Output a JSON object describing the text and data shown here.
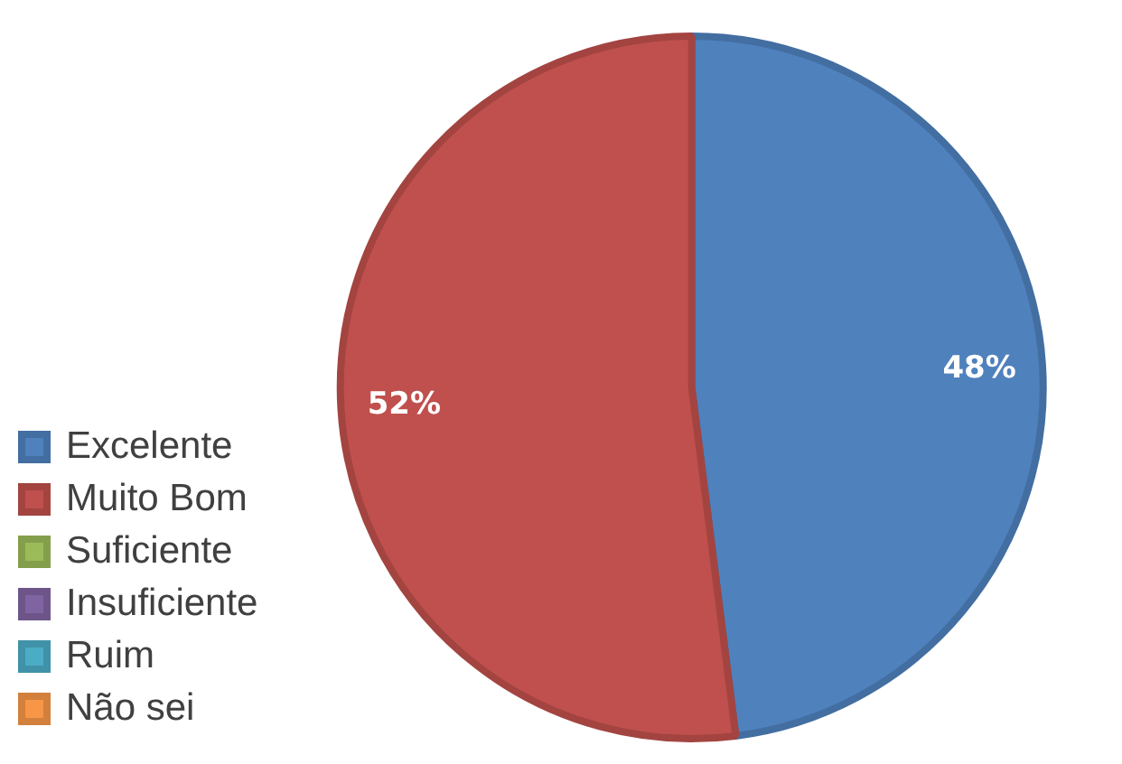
{
  "chart_data": {
    "type": "pie",
    "categories": [
      "Excelente",
      "Muito Bom",
      "Suficiente",
      "Insuficiente",
      "Ruim",
      "Não sei"
    ],
    "values": [
      48,
      52,
      0,
      0,
      0,
      0
    ],
    "colors": [
      "#4f81bd",
      "#c0504d",
      "#9bbb59",
      "#8064a2",
      "#4bacc6",
      "#f79646"
    ],
    "value_labels": [
      "48%",
      "52%",
      null,
      null,
      null,
      null
    ],
    "legend": "left"
  }
}
